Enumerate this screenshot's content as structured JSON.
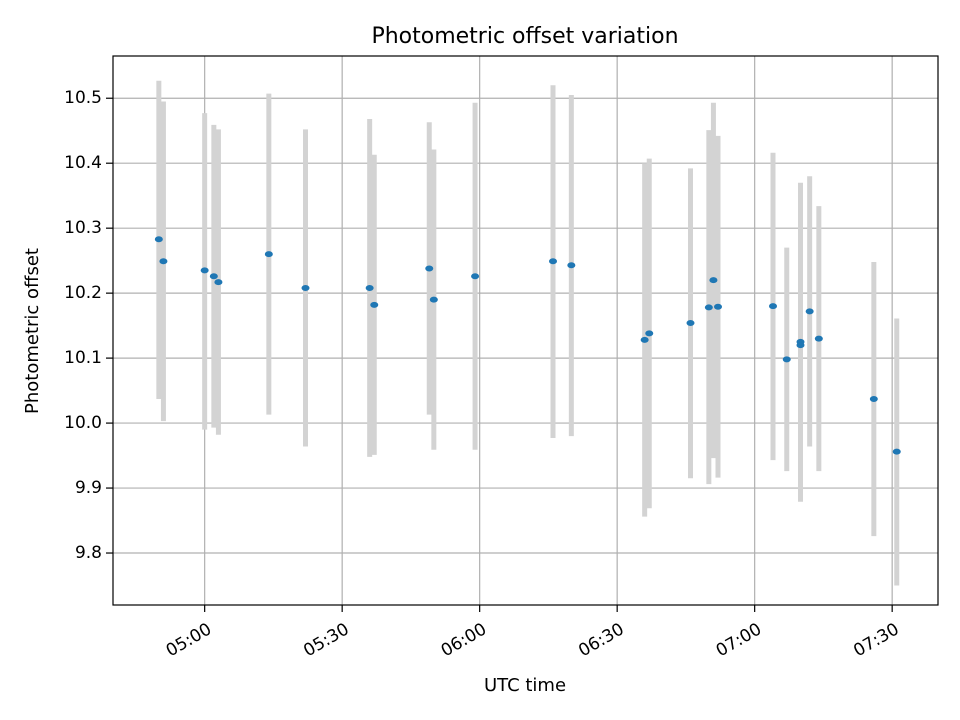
{
  "chart_data": {
    "type": "scatter",
    "title": "Photometric offset variation",
    "xlabel": "UTC time",
    "ylabel": "Photometric offset",
    "grid": true,
    "xlim": [
      "04:40",
      "07:40"
    ],
    "ylim": [
      9.72,
      10.565
    ],
    "x_ticks": [
      "05:00",
      "05:30",
      "06:00",
      "06:30",
      "07:00",
      "07:30"
    ],
    "y_ticks": [
      "9.8",
      "9.9",
      "10.0",
      "10.1",
      "10.2",
      "10.3",
      "10.4",
      "10.5"
    ],
    "marker_color": "#1f77b4",
    "errorbar_color": "#d3d3d3",
    "points": [
      {
        "time": "04:50",
        "value": 10.283,
        "lower": 10.037,
        "upper": 10.527
      },
      {
        "time": "04:51",
        "value": 10.249,
        "lower": 10.003,
        "upper": 10.495
      },
      {
        "time": "05:00",
        "value": 10.235,
        "lower": 9.99,
        "upper": 10.477
      },
      {
        "time": "05:02",
        "value": 10.226,
        "lower": 9.993,
        "upper": 10.459
      },
      {
        "time": "05:03",
        "value": 10.217,
        "lower": 9.982,
        "upper": 10.452
      },
      {
        "time": "05:14",
        "value": 10.26,
        "lower": 10.013,
        "upper": 10.507
      },
      {
        "time": "05:22",
        "value": 10.208,
        "lower": 9.964,
        "upper": 10.452
      },
      {
        "time": "05:36",
        "value": 10.208,
        "lower": 9.948,
        "upper": 10.468
      },
      {
        "time": "05:37",
        "value": 10.182,
        "lower": 9.951,
        "upper": 10.413
      },
      {
        "time": "05:49",
        "value": 10.238,
        "lower": 10.013,
        "upper": 10.463
      },
      {
        "time": "05:50",
        "value": 10.19,
        "lower": 9.959,
        "upper": 10.421
      },
      {
        "time": "05:59",
        "value": 10.226,
        "lower": 9.959,
        "upper": 10.493
      },
      {
        "time": "06:16",
        "value": 10.249,
        "lower": 9.977,
        "upper": 10.52
      },
      {
        "time": "06:20",
        "value": 10.243,
        "lower": 9.98,
        "upper": 10.505
      },
      {
        "time": "06:36",
        "value": 10.128,
        "lower": 9.856,
        "upper": 10.4
      },
      {
        "time": "06:37",
        "value": 10.138,
        "lower": 9.869,
        "upper": 10.407
      },
      {
        "time": "06:46",
        "value": 10.154,
        "lower": 9.915,
        "upper": 10.392
      },
      {
        "time": "06:50",
        "value": 10.178,
        "lower": 9.906,
        "upper": 10.451
      },
      {
        "time": "06:51",
        "value": 10.22,
        "lower": 9.946,
        "upper": 10.493
      },
      {
        "time": "06:52",
        "value": 10.179,
        "lower": 9.916,
        "upper": 10.442
      },
      {
        "time": "07:04",
        "value": 10.18,
        "lower": 9.943,
        "upper": 10.416
      },
      {
        "time": "07:07",
        "value": 10.098,
        "lower": 9.926,
        "upper": 10.27
      },
      {
        "time": "07:10",
        "value": 10.125,
        "lower": 9.879,
        "upper": 10.37
      },
      {
        "time": "07:10",
        "value": 10.12,
        "lower": 9.888,
        "upper": 10.352
      },
      {
        "time": "07:12",
        "value": 10.172,
        "lower": 9.964,
        "upper": 10.38
      },
      {
        "time": "07:14",
        "value": 10.13,
        "lower": 9.926,
        "upper": 10.334
      },
      {
        "time": "07:26",
        "value": 10.037,
        "lower": 9.826,
        "upper": 10.248
      },
      {
        "time": "07:31",
        "value": 9.956,
        "lower": 9.75,
        "upper": 10.161
      }
    ]
  }
}
